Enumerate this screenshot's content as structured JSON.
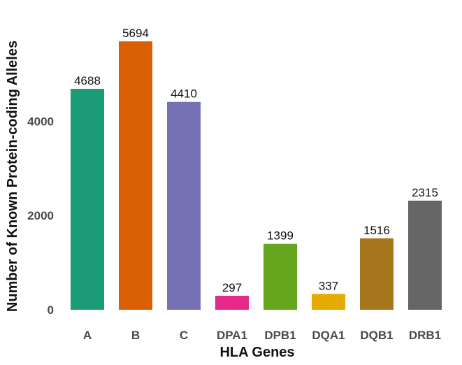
{
  "chart_data": {
    "type": "bar",
    "title": "",
    "xlabel": "HLA Genes",
    "ylabel": "Number of Known Protein-coding Alleles",
    "categories": [
      "A",
      "B",
      "C",
      "DPA1",
      "DPB1",
      "DQA1",
      "DQB1",
      "DRB1"
    ],
    "values": [
      4688,
      5694,
      4410,
      297,
      1399,
      337,
      1516,
      2315
    ],
    "value_labels": [
      "4688",
      "5694",
      "4410",
      "297",
      "1399",
      "337",
      "1516",
      "2315"
    ],
    "colors": [
      "#1b9e77",
      "#d95f02",
      "#7570b3",
      "#e7298a",
      "#66a61e",
      "#e6ab02",
      "#a6761d",
      "#666666"
    ],
    "y_ticks": [
      0,
      2000,
      4000
    ],
    "y_tick_labels": [
      "0",
      "2000",
      "4000"
    ],
    "ylim": [
      0,
      5900
    ],
    "grid": false,
    "legend": "none"
  }
}
